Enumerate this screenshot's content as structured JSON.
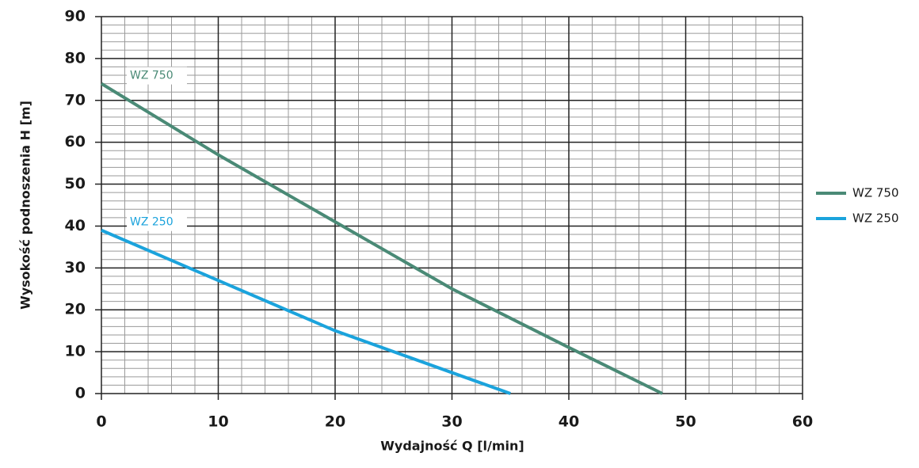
{
  "chart_data": {
    "type": "line",
    "xlabel": "Wydajność Q [l/min]",
    "ylabel": "Wysokość podnoszenia H [m]",
    "xlim": [
      0,
      60
    ],
    "xticks": [
      0,
      10,
      20,
      30,
      40,
      50,
      60
    ],
    "ylim": [
      0,
      90
    ],
    "yticks": [
      0,
      10,
      20,
      30,
      40,
      50,
      60,
      70,
      80,
      90
    ],
    "x_minor_ticks": [
      2,
      4,
      6,
      8,
      12,
      14,
      16,
      18,
      22,
      24,
      26,
      28,
      32,
      34,
      36,
      38,
      42,
      44,
      46,
      48,
      52,
      54,
      56,
      58
    ],
    "y_minor_ticks": [
      2,
      4,
      6,
      8,
      12,
      14,
      16,
      18,
      22,
      24,
      26,
      28,
      32,
      34,
      36,
      38,
      42,
      44,
      46,
      48,
      52,
      54,
      56,
      58,
      62,
      64,
      66,
      68,
      72,
      74,
      76,
      78,
      82,
      84,
      86,
      88
    ],
    "grid": true,
    "legend": "right",
    "series": [
      {
        "name": "WZ 750",
        "color": "#4a8a76",
        "x": [
          0,
          10,
          20,
          30,
          40,
          48
        ],
        "values": [
          74,
          57,
          41,
          25,
          11,
          0
        ]
      },
      {
        "name": "WZ 250",
        "color": "#1ba3dc",
        "x": [
          0,
          10,
          20,
          30,
          35
        ],
        "values": [
          39,
          27,
          15,
          5,
          0
        ]
      }
    ]
  }
}
